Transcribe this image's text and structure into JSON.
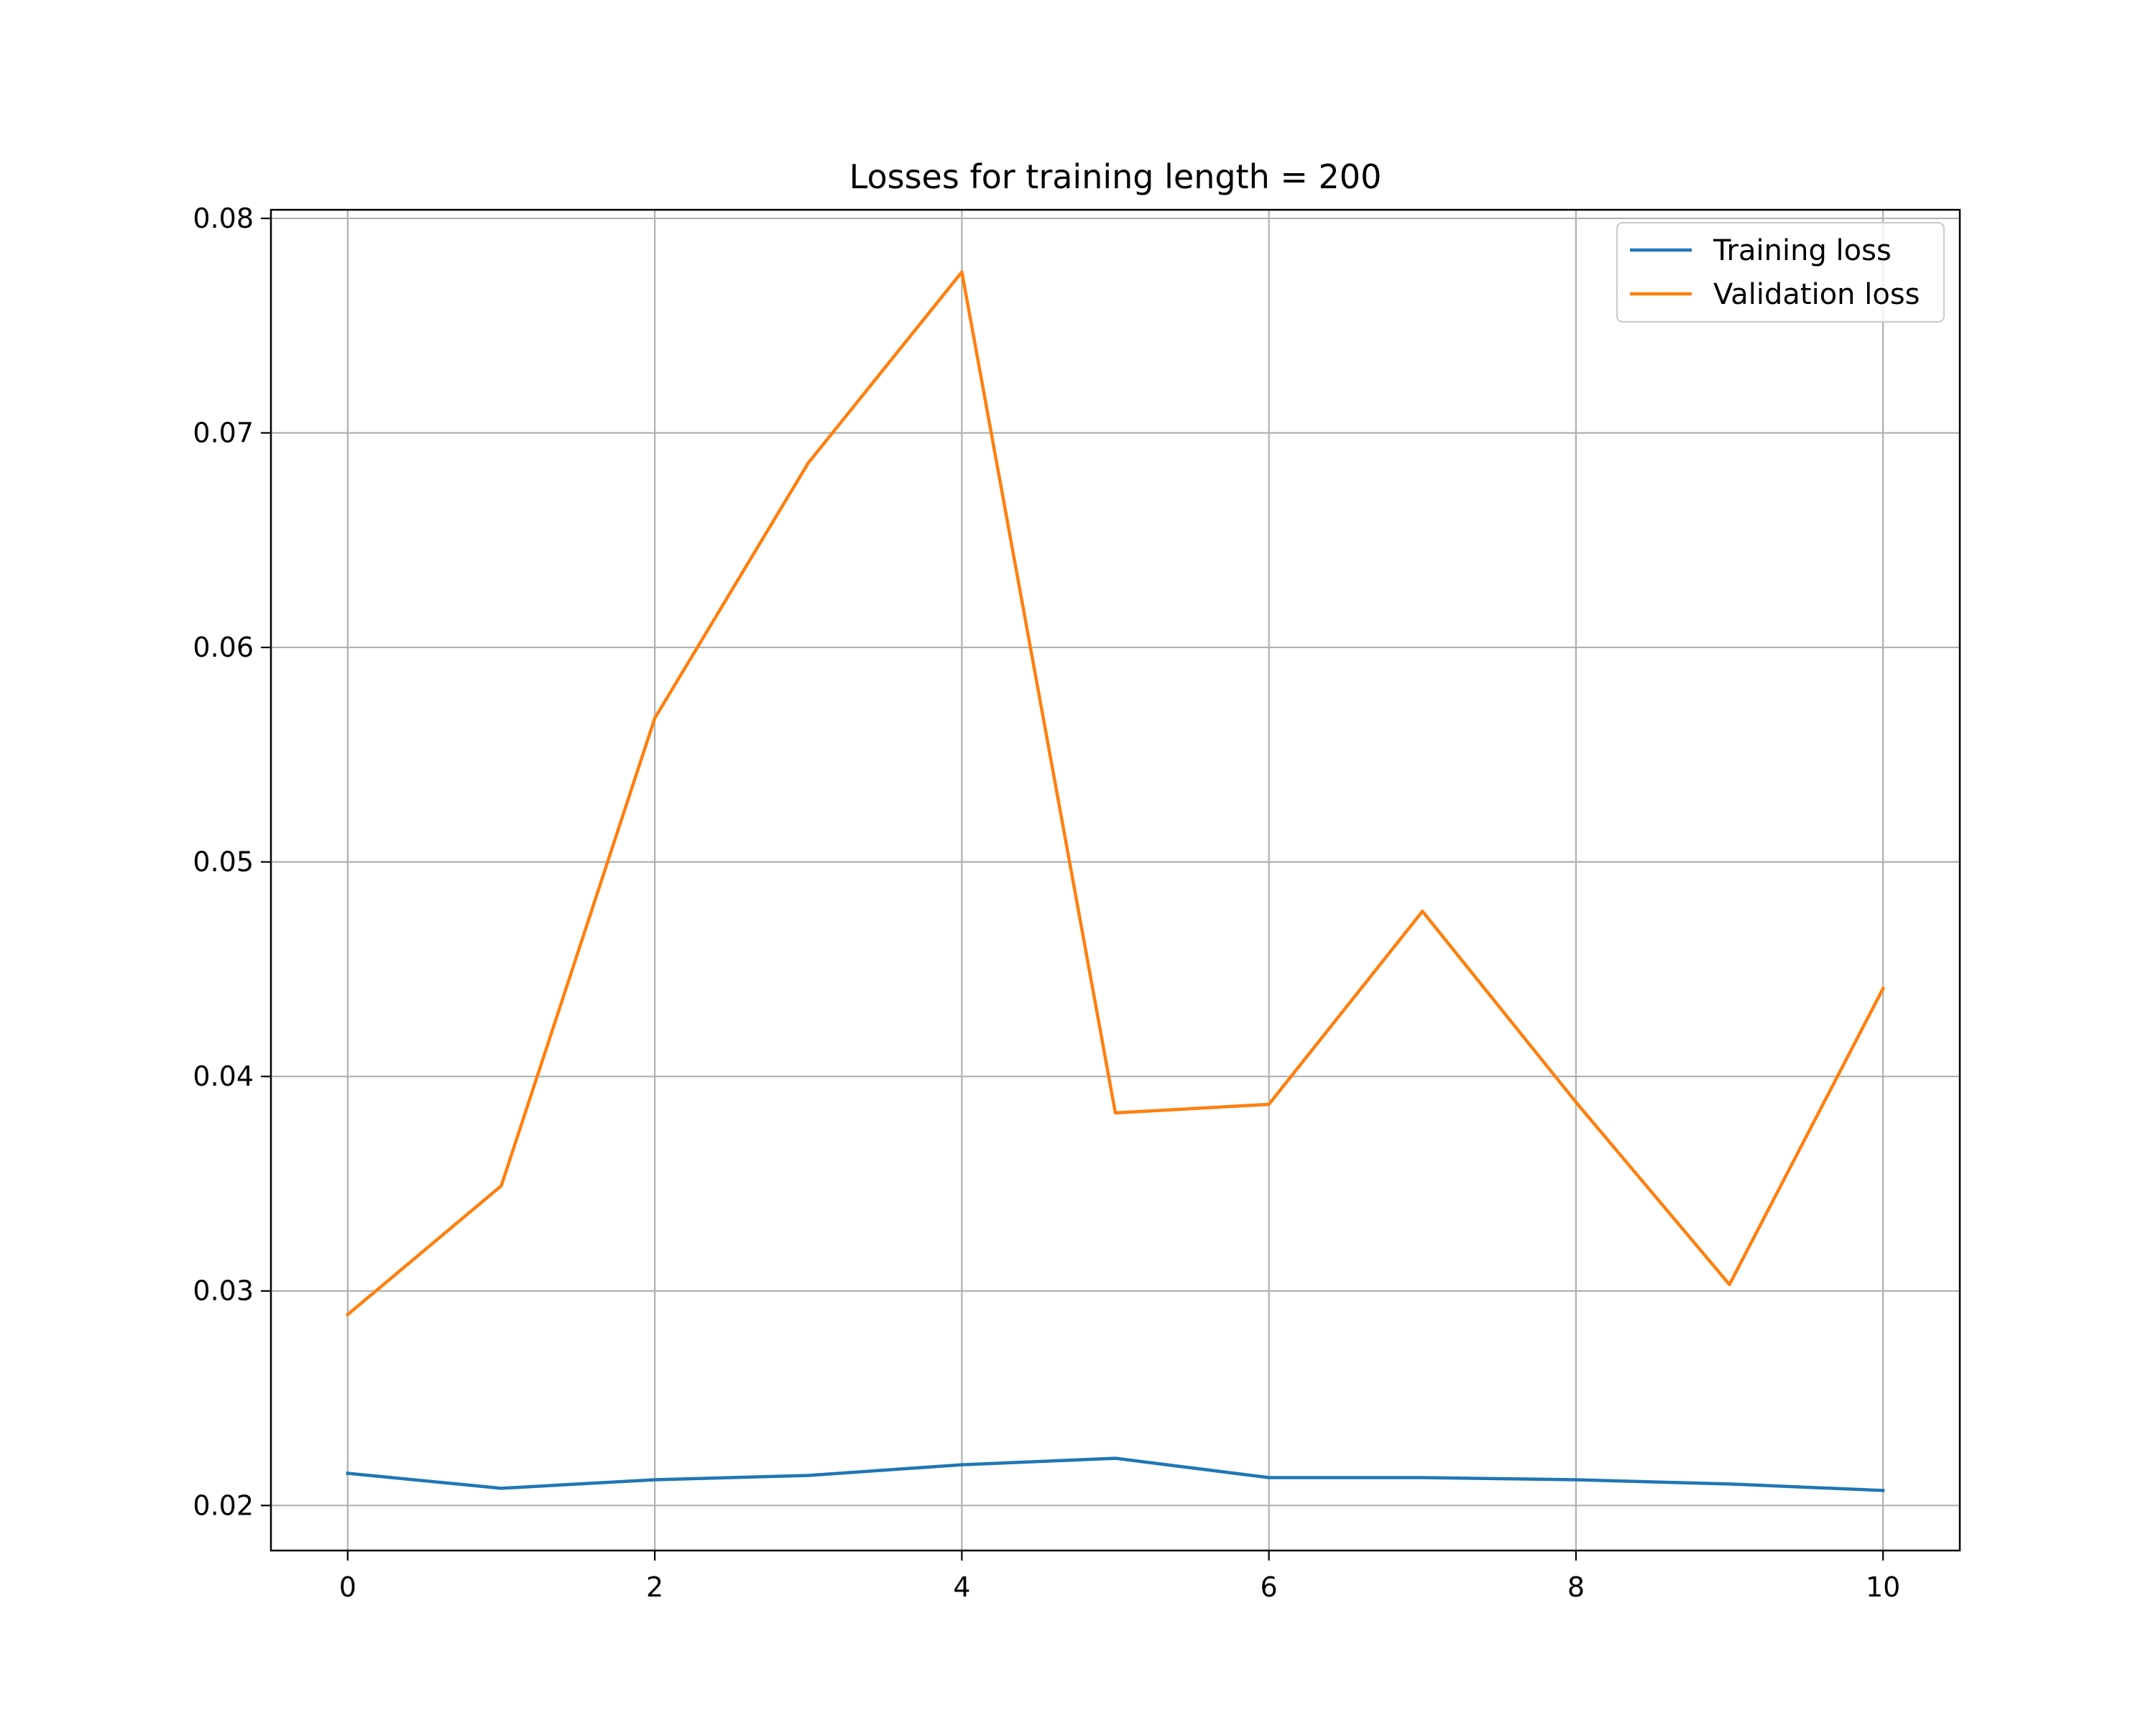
{
  "chart_data": {
    "type": "line",
    "title": "Losses for training length = 200",
    "xlabel": "",
    "ylabel": "",
    "x": [
      0,
      1,
      2,
      3,
      4,
      5,
      6,
      7,
      8,
      9,
      10
    ],
    "series": [
      {
        "name": "Training loss",
        "color": "#1f77b4",
        "values": [
          0.0215,
          0.0208,
          0.0212,
          0.0214,
          0.0219,
          0.0222,
          0.0213,
          0.0213,
          0.0212,
          0.021,
          0.0207
        ]
      },
      {
        "name": "Validation loss",
        "color": "#ff7f0e",
        "values": [
          0.0289,
          0.0349,
          0.0567,
          0.0686,
          0.0775,
          0.0383,
          0.0387,
          0.0477,
          0.0388,
          0.0303,
          0.0441
        ]
      }
    ],
    "xlim": [
      -0.5,
      10.5
    ],
    "ylim": [
      0.0179,
      0.0804
    ],
    "xticks": [
      0,
      2,
      4,
      6,
      8,
      10
    ],
    "xtick_labels": [
      "0",
      "2",
      "4",
      "6",
      "8",
      "10"
    ],
    "yticks": [
      0.02,
      0.03,
      0.04,
      0.05,
      0.06,
      0.07,
      0.08
    ],
    "ytick_labels": [
      "0.02",
      "0.03",
      "0.04",
      "0.05",
      "0.06",
      "0.07",
      "0.08"
    ],
    "grid": true,
    "legend_position": "top-right"
  }
}
